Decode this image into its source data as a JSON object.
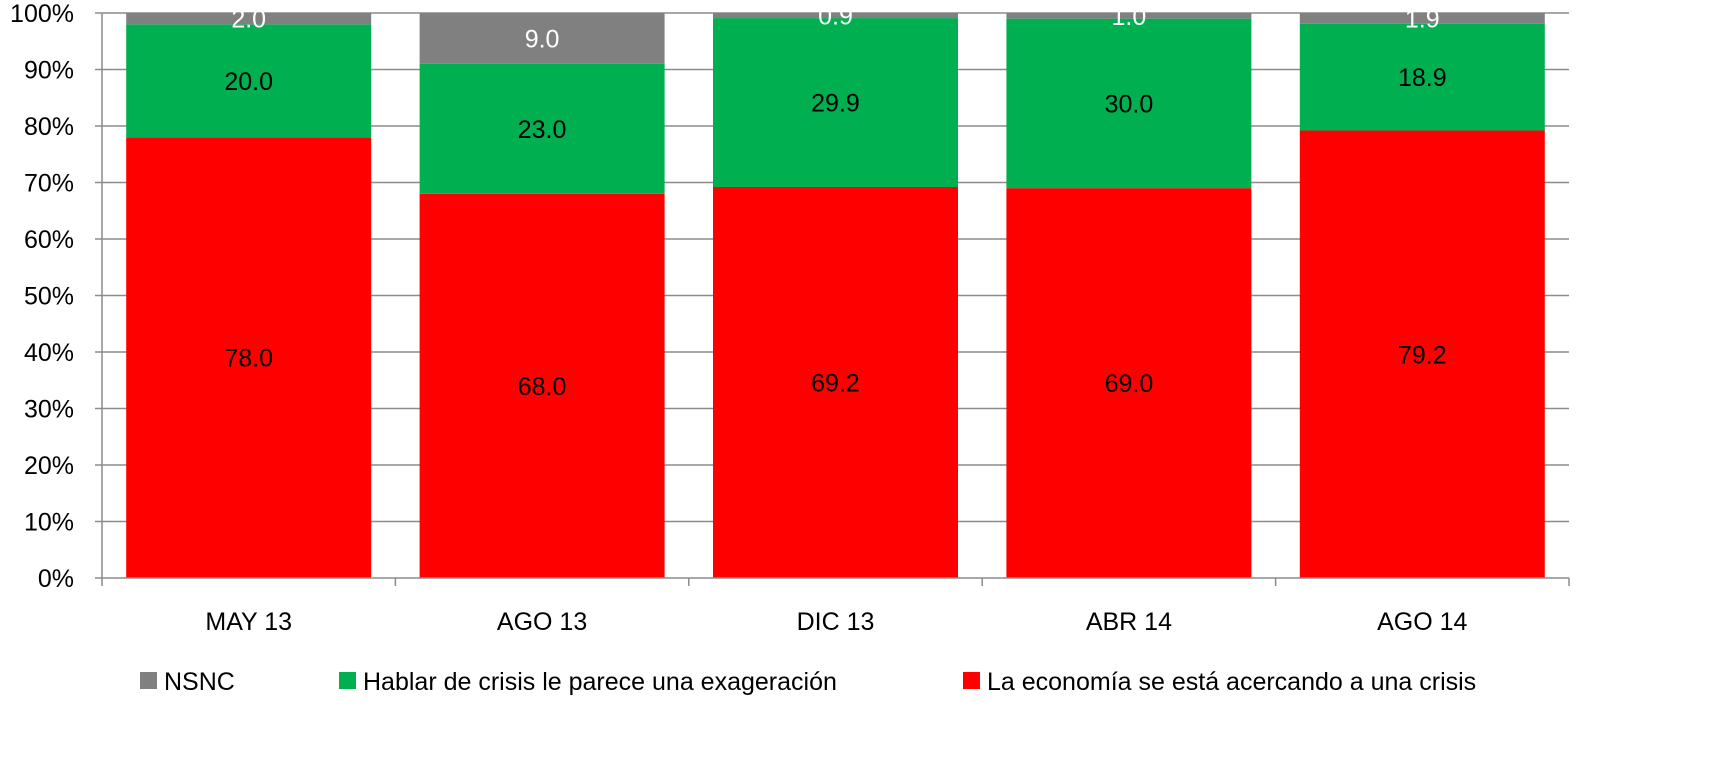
{
  "chart_data": {
    "type": "bar",
    "stacked": true,
    "percent_stacked": true,
    "categories": [
      "MAY 13",
      "AGO 13",
      "DIC 13",
      "ABR 14",
      "AGO 14"
    ],
    "series": [
      {
        "name": "La economía se está acercando a una crisis",
        "color": "#ff0000",
        "values": [
          78.0,
          68.0,
          69.2,
          69.0,
          79.2
        ],
        "labels": [
          "78.0",
          "68.0",
          "69.2",
          "69.0",
          "79.2"
        ],
        "label_color": "#000000"
      },
      {
        "name": "Hablar de crisis le parece una exageración",
        "color": "#00b050",
        "values": [
          20.0,
          23.0,
          29.9,
          30.0,
          18.9
        ],
        "labels": [
          "20.0",
          "23.0",
          "29.9",
          "30.0",
          "18.9"
        ],
        "label_color": "#000000"
      },
      {
        "name": "NSNC",
        "color": "#808080",
        "values": [
          2.0,
          9.0,
          0.9,
          1.0,
          1.9
        ],
        "labels": [
          "2.0",
          "9.0",
          "0.9",
          "1.0",
          "1.9"
        ],
        "label_color": "#ffffff"
      }
    ],
    "y_ticks": [
      "0%",
      "10%",
      "20%",
      "30%",
      "40%",
      "50%",
      "60%",
      "70%",
      "80%",
      "90%",
      "100%"
    ],
    "ylim": [
      0,
      100
    ],
    "grid": true,
    "legend_position": "bottom",
    "legend_order": [
      "NSNC",
      "Hablar de crisis le parece una exageración",
      "La economía se está acercando a una crisis"
    ]
  }
}
